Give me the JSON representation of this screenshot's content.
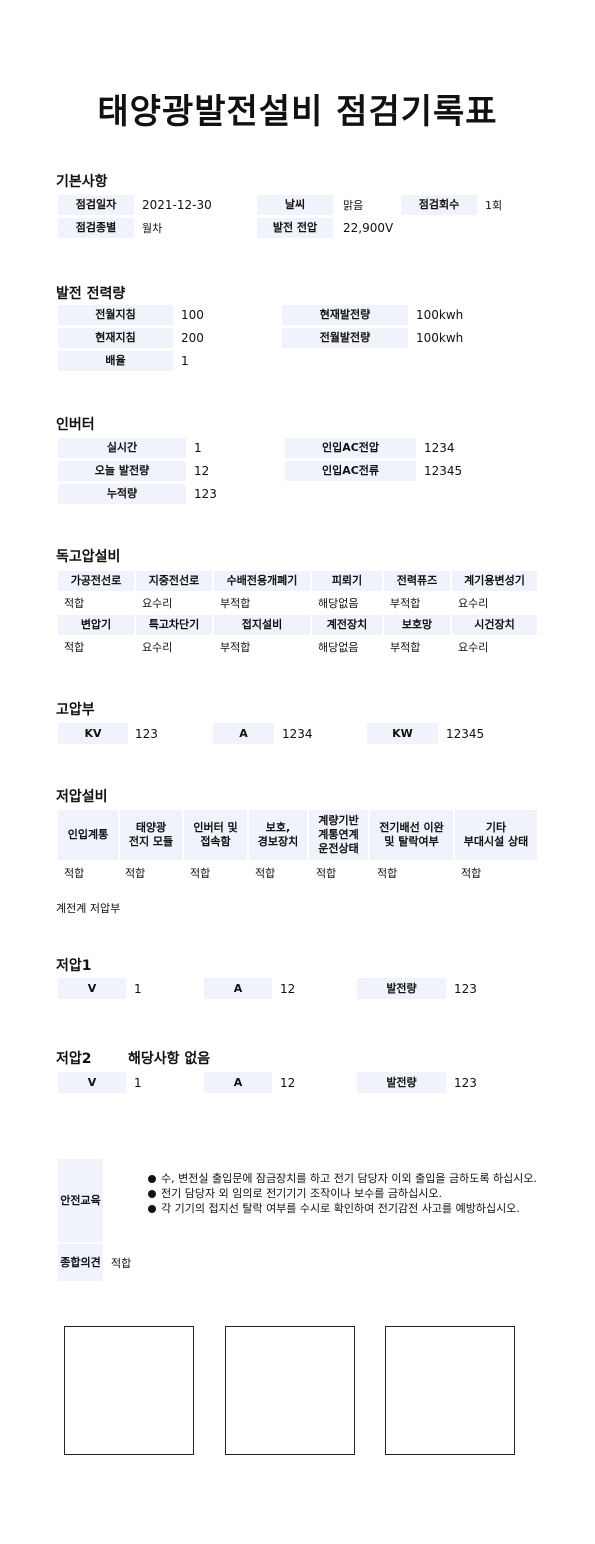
{
  "title": "태양광발전설비 점검기록표",
  "basic": {
    "heading": "기본사항",
    "date_label": "점검일자",
    "date_value": "2021-12-30",
    "weather_label": "날씨",
    "weather_value": "맑음",
    "count_label": "점검회수",
    "count_value": "1회",
    "type_label": "점검종별",
    "type_value": "월차",
    "voltage_label": "발전 전압",
    "voltage_value": "22,900V"
  },
  "power": {
    "heading": "발전 전력량",
    "prev_reading_label": "전월지침",
    "prev_reading_value": "100",
    "cur_gen_label": "현재발전량",
    "cur_gen_value": "100kwh",
    "cur_reading_label": "현재지침",
    "cur_reading_value": "200",
    "prev_gen_label": "전월발전량",
    "prev_gen_value": "100kwh",
    "multiplier_label": "배율",
    "multiplier_value": "1"
  },
  "inverter": {
    "heading": "인버터",
    "realtime_label": "실시간",
    "realtime_value": "1",
    "ac_voltage_label": "인입AC전압",
    "ac_voltage_value": "1234",
    "today_label": "오늘 발전량",
    "today_value": "12",
    "ac_current_label": "인입AC전류",
    "ac_current_value": "12345",
    "total_label": "누적량",
    "total_value": "123"
  },
  "hv_equipment": {
    "heading": "독고압설비",
    "row1_headers": [
      "가공전선로",
      "지중전선로",
      "수배전용개폐기",
      "피뢰기",
      "전력퓨즈",
      "계기용변성기"
    ],
    "row1_values": [
      "적합",
      "요수리",
      "부적합",
      "해당없음",
      "부적합",
      "요수리"
    ],
    "row2_headers": [
      "변압기",
      "특고차단기",
      "접지설비",
      "계전장치",
      "보호망",
      "시건장치"
    ],
    "row2_values": [
      "적합",
      "요수리",
      "부적합",
      "해당없음",
      "부적합",
      "요수리"
    ]
  },
  "hv": {
    "heading": "고압부",
    "kv_label": "KV",
    "kv_value": "123",
    "a_label": "A",
    "a_value": "1234",
    "kw_label": "KW",
    "kw_value": "12345"
  },
  "lv_equipment": {
    "heading": "저압설비",
    "headers": [
      "인입계통",
      "태양광\n전지 모듈",
      "인버터 및\n접속함",
      "보호,\n경보장치",
      "계량기반\n계통연계\n운전상태",
      "전기배선 이완\n및 탈락여부",
      "기타\n부대시설 상태"
    ],
    "values": [
      "적합",
      "적합",
      "적합",
      "적합",
      "적합",
      "적합",
      "적합"
    ],
    "note": "계전계 저압부"
  },
  "lv1": {
    "heading": "저압1",
    "v_label": "V",
    "v_value": "1",
    "a_label": "A",
    "a_value": "12",
    "gen_label": "발전량",
    "gen_value": "123"
  },
  "lv2": {
    "heading": "저압2",
    "subtitle": "해당사항 없음",
    "v_label": "V",
    "v_value": "1",
    "a_label": "A",
    "a_value": "12",
    "gen_label": "발전량",
    "gen_value": "123"
  },
  "safety": {
    "label": "안전교육",
    "items": [
      "수, 변전실 출입문에 잠금장치를 하고 전기 담당자 이외 출입을 금하도록 하십시오.",
      "전기 담당자 외 임의로 전기기기 조작이나 보수를 금하십시오.",
      "각 기기의 접지선 탈락 여부를 수시로 확인하여 전기감전 사고를 예방하십시오."
    ]
  },
  "overall": {
    "label": "종합의견",
    "value": "적합"
  }
}
